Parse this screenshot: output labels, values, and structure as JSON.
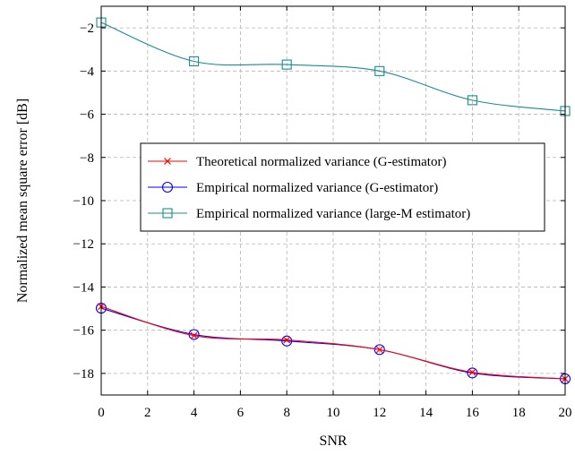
{
  "chart_data": {
    "type": "line",
    "title": "",
    "xlabel": "SNR",
    "ylabel": "Normalized mean square error [dB]",
    "xlim": [
      0,
      20
    ],
    "ylim": [
      -19,
      -1
    ],
    "xticks": [
      0,
      2,
      4,
      6,
      8,
      10,
      12,
      14,
      16,
      18,
      20
    ],
    "yticks": [
      -2,
      -4,
      -6,
      -8,
      -10,
      -12,
      -14,
      -16,
      -18
    ],
    "ytick_labels": [
      "−2",
      "−4",
      "−6",
      "−8",
      "−10",
      "−12",
      "−14",
      "−16",
      "−18"
    ],
    "grid": true,
    "legend_position": "center-right",
    "series": [
      {
        "name": "Theoretical normalized variance (G-estimator)",
        "color": "#ff0000",
        "marker": "x",
        "x": [
          0,
          4,
          8,
          12,
          16,
          20
        ],
        "y": [
          -14.9,
          -16.25,
          -16.45,
          -16.9,
          -17.95,
          -18.25
        ]
      },
      {
        "name": "Empirical normalized variance (G-estimator)",
        "color": "#0000ff",
        "marker": "circle",
        "x": [
          0,
          4,
          8,
          12,
          16,
          20
        ],
        "y": [
          -14.98,
          -16.2,
          -16.5,
          -16.9,
          -17.98,
          -18.25
        ]
      },
      {
        "name": "Empirical normalized variance (large-M estimator)",
        "color": "#1a8c8c",
        "marker": "square",
        "x": [
          0,
          4,
          8,
          12,
          16,
          20
        ],
        "y": [
          -1.75,
          -3.55,
          -3.7,
          -4.0,
          -5.35,
          -5.85
        ]
      }
    ]
  }
}
